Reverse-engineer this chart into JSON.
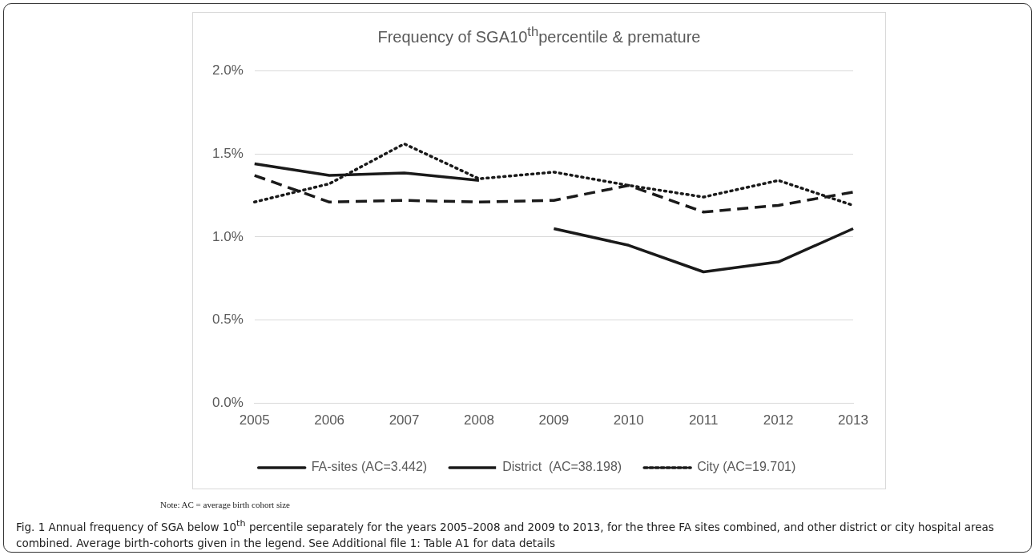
{
  "chart_data": {
    "type": "line",
    "title": "Frequency of SGA10$^{th}$percentile & premature",
    "categories": [
      "2005",
      "2006",
      "2007",
      "2008",
      "2009",
      "2010",
      "2011",
      "2012",
      "2013"
    ],
    "series": [
      {
        "name": "FA-sites (AC=3.442)",
        "color": "#1a1a1a",
        "line_style": "solid",
        "values": [
          1.44,
          1.37,
          1.385,
          1.34,
          null,
          null,
          null,
          null,
          null
        ]
      },
      {
        "color": "#1a1a1a",
        "line_style": "solid",
        "values": [
          null,
          null,
          null,
          null,
          1.05,
          0.95,
          0.79,
          0.85,
          1.05
        ]
      },
      {
        "name": "District  (AC=38.198)",
        "color": "#1a1a1a",
        "line_style": "dashed",
        "values": [
          1.37,
          1.21,
          1.22,
          1.21,
          1.22,
          1.31,
          1.15,
          1.19,
          1.27
        ]
      },
      {
        "name": "City (AC=19.701)",
        "color": "#1a1a1a",
        "line_style": "dotted",
        "values": [
          1.21,
          1.32,
          1.56,
          1.35,
          1.39,
          1.31,
          1.24,
          1.34,
          1.19
        ]
      }
    ],
    "ylim": [
      0,
      2
    ],
    "yticks": [
      {
        "value": 0,
        "label": "0.0%"
      },
      {
        "value": 0.5,
        "label": "0.5%"
      },
      {
        "value": 1,
        "label": "1.0%"
      },
      {
        "value": 1.5,
        "label": "1.5%"
      },
      {
        "value": 2,
        "label": "2.0%"
      }
    ],
    "grid": "y",
    "legend": "bottom",
    "marker": "none",
    "annotations": [
      "Note: AC = average birth cohort size",
      "Fig. 1 Annual frequency of SGA below 10$^{th}$ percentile separately for the years 2005–2008 and 2009 to 2013, for the three FA sites combined, and other district or city hospital areas combined. Average birth-cohorts given in the legend. See Additional file 1: Table A1 for data details"
    ]
  }
}
